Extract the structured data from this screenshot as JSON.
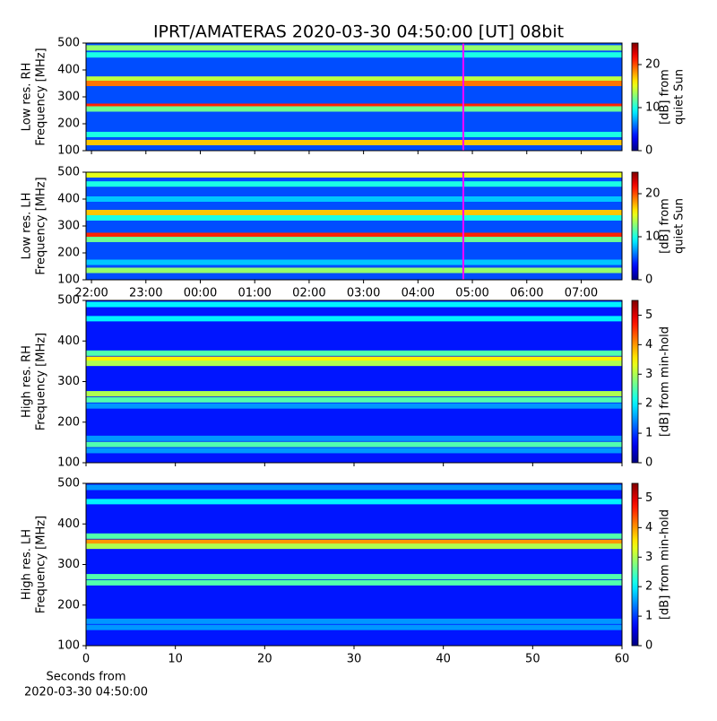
{
  "title": "IPRT/AMATERAS 2020-03-30 04:50:00 [UT]   08bit",
  "chart_data": [
    {
      "type": "heatmap",
      "colormap": "jet",
      "ylabel": [
        "Low res. RH",
        "Frequency [MHz]"
      ],
      "ylim": [
        100,
        500
      ],
      "yticks": [
        100,
        200,
        300,
        400,
        500
      ],
      "xlim": [
        -2.1,
        7.75
      ],
      "xticks": [
        -2,
        -1,
        0,
        1,
        2,
        3,
        4,
        5,
        6,
        7
      ],
      "xticklabels": false,
      "marker_x": 4.833,
      "marker_color": "#ff00ff",
      "background_level": 5,
      "bands": [
        {
          "freq": 482,
          "level": 13
        },
        {
          "freq": 456,
          "level": 10
        },
        {
          "freq": 366,
          "level": 14
        },
        {
          "freq": 350,
          "level": 19
        },
        {
          "freq": 265,
          "level": 21
        },
        {
          "freq": 255,
          "level": 12
        },
        {
          "freq": 160,
          "level": 10
        },
        {
          "freq": 130,
          "level": 17
        }
      ],
      "colorbar": {
        "label": [
          "[dB] from",
          "quiet Sun"
        ],
        "lim": [
          0,
          25
        ],
        "ticks": [
          0,
          10,
          20
        ]
      }
    },
    {
      "type": "heatmap",
      "colormap": "jet",
      "ylabel": [
        "Low res. LH",
        "Frequency [MHz]"
      ],
      "ylim": [
        100,
        500
      ],
      "yticks": [
        100,
        200,
        300,
        400,
        500
      ],
      "xlim": [
        -2.1,
        7.75
      ],
      "xticks": [
        {
          "value": -2,
          "label": "22:00"
        },
        {
          "value": -1,
          "label": "23:00"
        },
        {
          "value": 0,
          "label": "00:00"
        },
        {
          "value": 1,
          "label": "01:00"
        },
        {
          "value": 2,
          "label": "02:00"
        },
        {
          "value": 3,
          "label": "03:00"
        },
        {
          "value": 4,
          "label": "04:00"
        },
        {
          "value": 5,
          "label": "05:00"
        },
        {
          "value": 6,
          "label": "06:00"
        },
        {
          "value": 7,
          "label": "07:00"
        }
      ],
      "marker_x": 4.833,
      "marker_color": "#ff00ff",
      "background_level": 5,
      "bands": [
        {
          "freq": 490,
          "level": 15
        },
        {
          "freq": 456,
          "level": 10
        },
        {
          "freq": 400,
          "level": 8
        },
        {
          "freq": 350,
          "level": 17
        },
        {
          "freq": 330,
          "level": 10
        },
        {
          "freq": 265,
          "level": 21
        },
        {
          "freq": 250,
          "level": 12
        },
        {
          "freq": 165,
          "level": 8
        },
        {
          "freq": 135,
          "level": 13
        }
      ],
      "colorbar": {
        "label": [
          "[dB] from",
          "quiet Sun"
        ],
        "lim": [
          0,
          25
        ],
        "ticks": [
          0,
          10,
          20
        ]
      }
    },
    {
      "type": "heatmap",
      "colormap": "jet",
      "ylabel": [
        "High res. RH",
        "Frequency [MHz]"
      ],
      "ylim": [
        100,
        500
      ],
      "yticks": [
        100,
        200,
        300,
        400,
        500
      ],
      "xlim": [
        0,
        60
      ],
      "xticks": [
        0,
        10,
        20,
        30,
        40,
        50,
        60
      ],
      "xticklabels": false,
      "background_level": 0.8,
      "bands": [
        {
          "freq": 490,
          "level": 2
        },
        {
          "freq": 455,
          "level": 2
        },
        {
          "freq": 370,
          "level": 2.5
        },
        {
          "freq": 355,
          "level": 3.5
        },
        {
          "freq": 345,
          "level": 3
        },
        {
          "freq": 270,
          "level": 3
        },
        {
          "freq": 255,
          "level": 2.5
        },
        {
          "freq": 240,
          "level": 1.5
        },
        {
          "freq": 160,
          "level": 1.5
        },
        {
          "freq": 145,
          "level": 2.5
        },
        {
          "freq": 130,
          "level": 1.5
        }
      ],
      "colorbar": {
        "label": [
          "[dB] from min-hold"
        ],
        "lim": [
          0,
          5.5
        ],
        "ticks": [
          0,
          1,
          2,
          3,
          4,
          5
        ]
      }
    },
    {
      "type": "heatmap",
      "colormap": "jet",
      "ylabel": [
        "High res. LH",
        "Frequency [MHz]"
      ],
      "ylim": [
        100,
        500
      ],
      "yticks": [
        100,
        200,
        300,
        400,
        500
      ],
      "xlim": [
        0,
        60
      ],
      "xticks": [
        0,
        10,
        20,
        30,
        40,
        50,
        60
      ],
      "xlabel": [
        "Seconds from",
        "2020-03-30 04:50:00"
      ],
      "background_level": 0.8,
      "bands": [
        {
          "freq": 490,
          "level": 1.5
        },
        {
          "freq": 455,
          "level": 2
        },
        {
          "freq": 370,
          "level": 2.5
        },
        {
          "freq": 355,
          "level": 4
        },
        {
          "freq": 345,
          "level": 3
        },
        {
          "freq": 270,
          "level": 2.5
        },
        {
          "freq": 255,
          "level": 2.5
        },
        {
          "freq": 160,
          "level": 1.5
        },
        {
          "freq": 145,
          "level": 1.5
        }
      ],
      "colorbar": {
        "label": [
          "[dB] from min-hold"
        ],
        "lim": [
          0,
          5.5
        ],
        "ticks": [
          0,
          1,
          2,
          3,
          4,
          5
        ]
      }
    }
  ]
}
